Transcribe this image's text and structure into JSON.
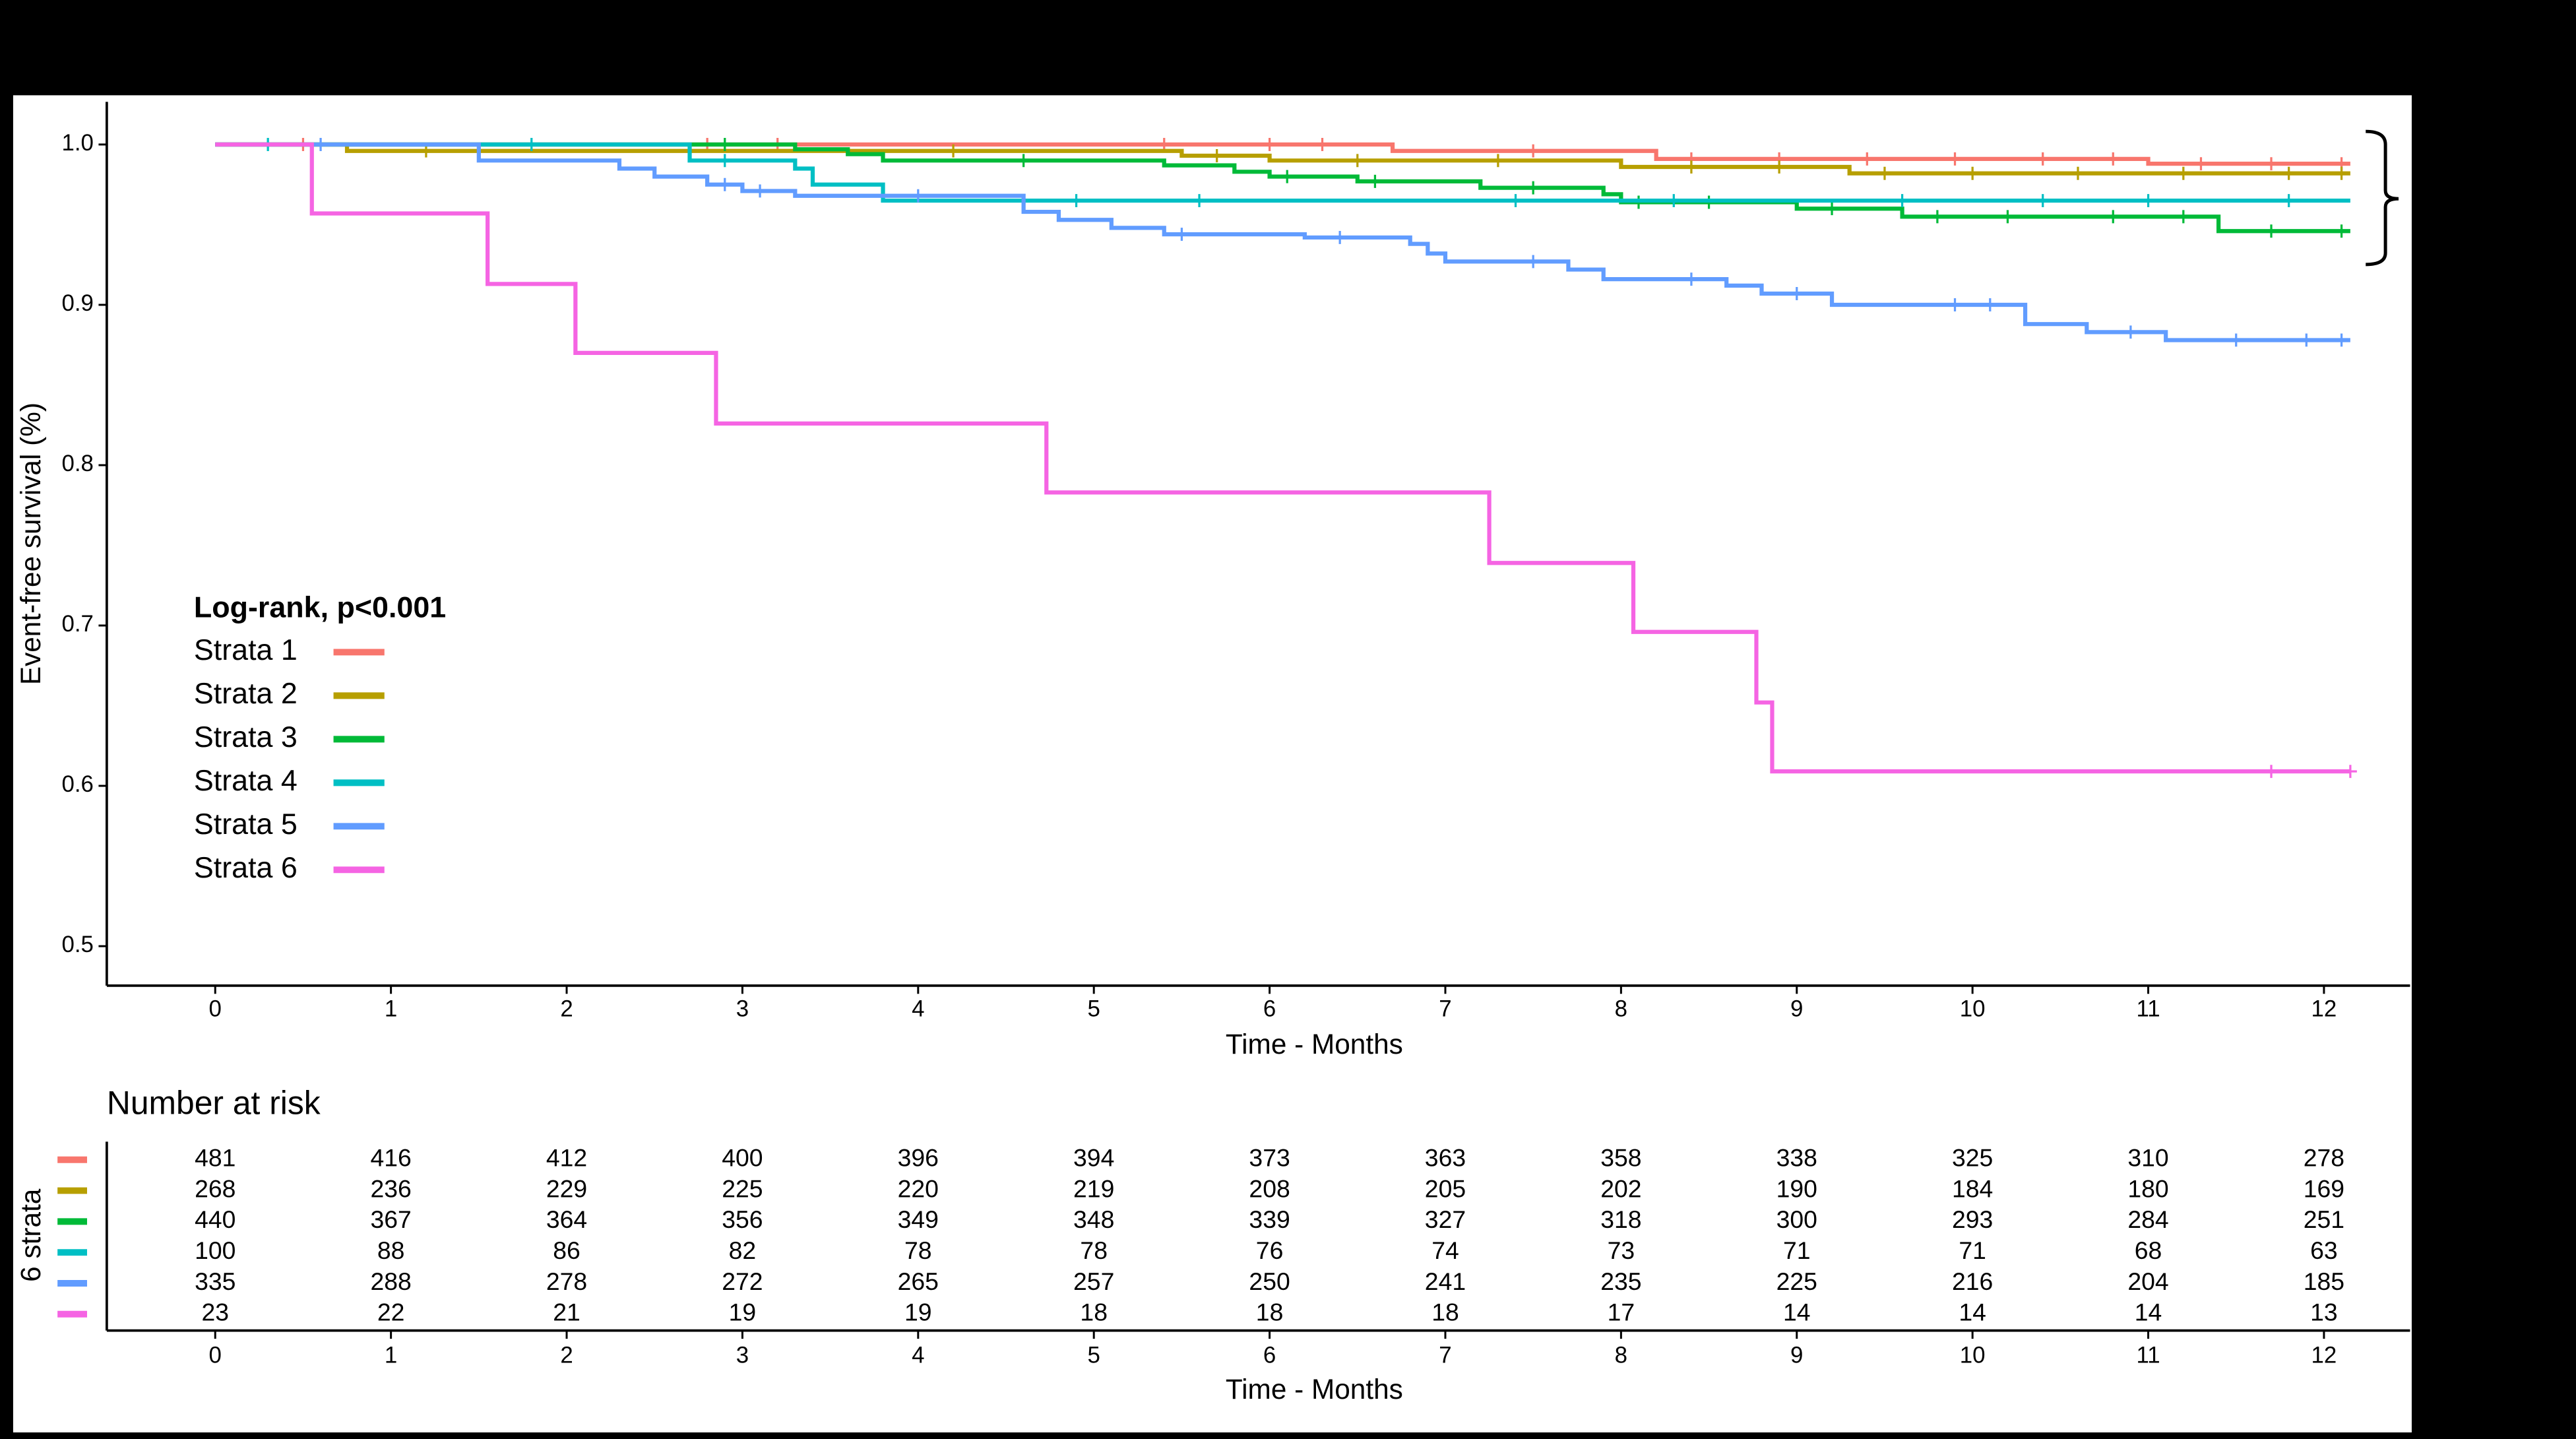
{
  "chart_data": {
    "type": "step",
    "ylabel": "Event-free survival (%)",
    "xlabel": "Time - Months",
    "xlim": [
      -0.617,
      12.49
    ],
    "ylim": [
      0.4754,
      1.0266
    ],
    "xticks": [
      0,
      1,
      2,
      3,
      4,
      5,
      6,
      7,
      8,
      9,
      10,
      11,
      12
    ],
    "yticks": [
      0.5,
      0.6,
      0.7,
      0.8,
      0.9,
      {
        "value": 1,
        "label": "1.0"
      }
    ],
    "legend_title": "Log-rank, p<0.001",
    "legend": "left",
    "series": [
      {
        "name": "Strata 1",
        "color": "#F8766D",
        "x": [
          0,
          6.7,
          8.2,
          11.0,
          12.15
        ],
        "values": [
          1,
          0.996,
          0.991,
          0.988,
          0.988
        ],
        "censored": [
          0.5,
          2.8,
          3.2,
          5.4,
          6.0,
          6.3,
          7.5,
          8.4,
          8.9,
          9.4,
          9.9,
          10.4,
          10.8,
          11.3,
          11.7,
          12.1
        ]
      },
      {
        "name": "Strata 2",
        "color": "#B79F00",
        "x": [
          0,
          0.75,
          5.5,
          6.0,
          8.0,
          9.3,
          12.15
        ],
        "values": [
          1,
          0.996,
          0.993,
          0.99,
          0.986,
          0.982,
          0.982
        ],
        "censored": [
          1.2,
          2.7,
          4.2,
          5.7,
          6.5,
          7.3,
          8.4,
          8.9,
          9.5,
          10.0,
          10.6,
          11.2,
          11.8,
          12.1
        ]
      },
      {
        "name": "Strata 3",
        "color": "#00BA38",
        "x": [
          0,
          3.3,
          3.6,
          3.8,
          5.4,
          5.8,
          6.0,
          6.5,
          7.2,
          7.9,
          8.0,
          9.0,
          9.6,
          11.4,
          12.15
        ],
        "values": [
          1,
          0.997,
          0.994,
          0.99,
          0.987,
          0.983,
          0.98,
          0.977,
          0.973,
          0.969,
          0.964,
          0.96,
          0.955,
          0.946,
          0.946
        ],
        "censored": [
          2.9,
          4.6,
          6.1,
          6.6,
          7.5,
          8.1,
          8.5,
          9.2,
          9.8,
          10.2,
          10.8,
          11.2,
          11.7,
          12.1
        ]
      },
      {
        "name": "Strata 4",
        "color": "#00BFC4",
        "x": [
          0,
          2.7,
          3.3,
          3.4,
          3.8,
          12.15
        ],
        "values": [
          1,
          0.99,
          0.985,
          0.975,
          0.965,
          0.965
        ],
        "censored": [
          0.3,
          1.8,
          2.9,
          4.9,
          5.6,
          7.4,
          8.3,
          9.6,
          10.4,
          11.0,
          11.8
        ]
      },
      {
        "name": "Strata 5",
        "color": "#619CFF",
        "x": [
          0,
          1.5,
          2.3,
          2.5,
          2.8,
          3.0,
          3.3,
          4.6,
          4.8,
          5.1,
          5.4,
          6.2,
          6.8,
          6.9,
          7.0,
          7.7,
          7.9,
          8.6,
          8.8,
          9.2,
          10.3,
          10.65,
          11.1,
          12.15
        ],
        "values": [
          1,
          0.99,
          0.985,
          0.98,
          0.975,
          0.971,
          0.968,
          0.958,
          0.953,
          0.948,
          0.944,
          0.942,
          0.938,
          0.932,
          0.927,
          0.922,
          0.916,
          0.912,
          0.907,
          0.9,
          0.888,
          0.883,
          0.878,
          0.878
        ],
        "censored": [
          0.6,
          2.9,
          3.1,
          4.0,
          5.5,
          6.4,
          7.5,
          8.4,
          9.0,
          9.9,
          10.1,
          10.9,
          11.5,
          11.9,
          12.1
        ]
      },
      {
        "name": "Strata 6",
        "color": "#F564E3",
        "x": [
          0,
          0.55,
          1.55,
          2.05,
          2.85,
          4.73,
          7.25,
          8.07,
          8.77,
          8.86,
          12.15
        ],
        "values": [
          1,
          0.957,
          0.913,
          0.87,
          0.826,
          0.783,
          0.739,
          0.696,
          0.652,
          0.609,
          0.609
        ],
        "censored": [
          11.7,
          12.15
        ]
      }
    ],
    "risk_table": {
      "title": "Number at risk",
      "ylabel": "6 strata",
      "xlabel": "Time - Months",
      "counts": [
        [
          481,
          416,
          412,
          400,
          396,
          394,
          373,
          363,
          358,
          338,
          325,
          310,
          278
        ],
        [
          268,
          236,
          229,
          225,
          220,
          219,
          208,
          205,
          202,
          190,
          184,
          180,
          169
        ],
        [
          440,
          367,
          364,
          356,
          349,
          348,
          339,
          327,
          318,
          300,
          293,
          284,
          251
        ],
        [
          100,
          88,
          86,
          82,
          78,
          78,
          76,
          74,
          73,
          71,
          71,
          68,
          63
        ],
        [
          335,
          288,
          278,
          272,
          265,
          257,
          250,
          241,
          235,
          225,
          216,
          204,
          185
        ],
        [
          23,
          22,
          21,
          19,
          19,
          18,
          18,
          18,
          17,
          14,
          14,
          14,
          13
        ]
      ]
    }
  }
}
